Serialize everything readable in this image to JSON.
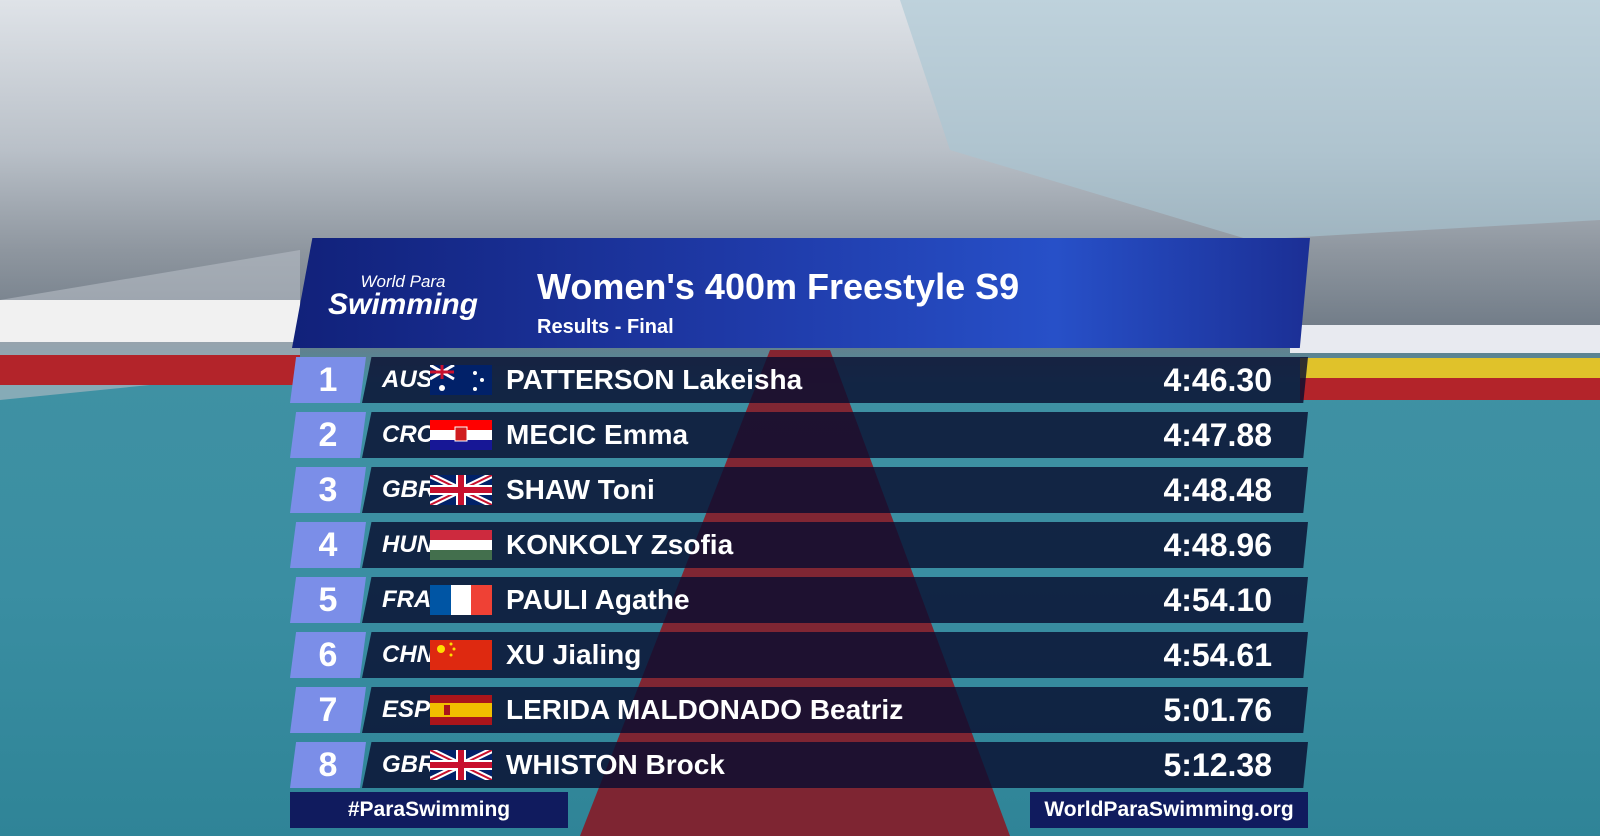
{
  "header": {
    "logo_line1": "World Para",
    "logo_line2": "Swimming",
    "title": "Women's 400m Freestyle S9",
    "subtitle": "Results - Final"
  },
  "table": {
    "rows": [
      [
        "1",
        "AUS",
        "PATTERSON Lakeisha",
        "4:46.30"
      ],
      [
        "2",
        "CRO",
        "MECIC Emma",
        "4:47.88"
      ],
      [
        "3",
        "GBR",
        "SHAW Toni",
        "4:48.48"
      ],
      [
        "4",
        "HUN",
        "KONKOLY Zsofia",
        "4:48.96"
      ],
      [
        "5",
        "FRA",
        "PAULI Agathe",
        "4:54.10"
      ],
      [
        "6",
        "CHN",
        "XU Jialing",
        "4:54.61"
      ],
      [
        "7",
        "ESP",
        "LERIDA MALDONADO Beatriz",
        "5:01.76"
      ],
      [
        "8",
        "GBR",
        "WHISTON Brock",
        "5:12.38"
      ]
    ]
  },
  "footer": {
    "hashtag": "#ParaSwimming",
    "url": "WorldParaSwimming.org"
  }
}
